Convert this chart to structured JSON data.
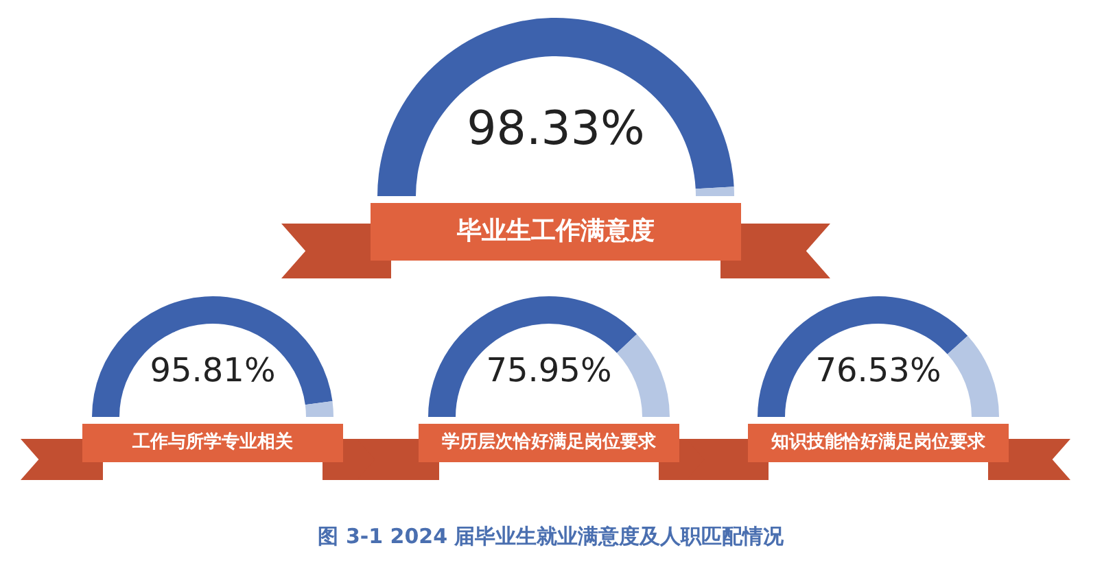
{
  "chart_data": [
    {
      "type": "donut",
      "title": "毕业生工作满意度",
      "categories": [
        null,
        null
      ],
      "values": [
        98.33,
        1.67
      ],
      "colors": [
        "#3d62ad",
        "#b6c7e4"
      ],
      "value_labels": [
        "98.33%",
        null
      ],
      "annotations": [
        "图 3-1  2024 届毕业生就业满意度及人职匹配情况"
      ]
    },
    {
      "type": "donut",
      "title": "工作与所学专业相关",
      "categories": [
        null,
        null
      ],
      "values": [
        95.81,
        4.19
      ],
      "colors": [
        "#3d62ad",
        "#b6c7e4"
      ],
      "value_labels": [
        "95.81%",
        null
      ]
    },
    {
      "type": "donut",
      "title": "学历层次恰好满足岗位要求",
      "categories": [
        null,
        null
      ],
      "values": [
        75.95,
        24.05
      ],
      "colors": [
        "#3d62ad",
        "#b6c7e4"
      ],
      "value_labels": [
        "75.95%",
        null
      ]
    },
    {
      "type": "donut",
      "title": "知识技能恰好满足岗位要求",
      "categories": [
        null,
        null
      ],
      "values": [
        76.53,
        23.47
      ],
      "colors": [
        "#3d62ad",
        "#b6c7e4"
      ],
      "value_labels": [
        "76.53%",
        null
      ]
    }
  ]
}
